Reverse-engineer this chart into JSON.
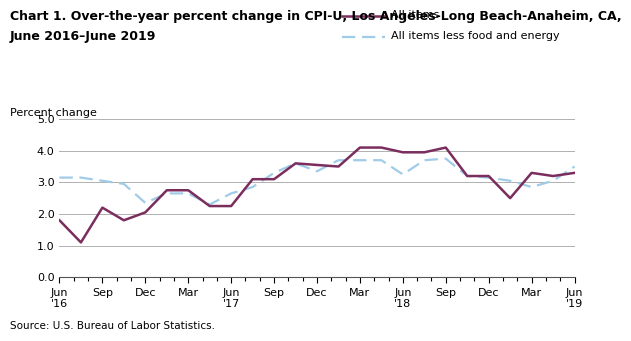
{
  "title_line1": "Chart 1. Over-the-year percent change in CPI-U, Los Angeles-Long Beach-Anaheim, CA,",
  "title_line2": "June 2016–June 2019",
  "ylabel": "Percent change",
  "source": "Source: U.S. Bureau of Labor Statistics.",
  "ylim": [
    0.0,
    5.0
  ],
  "yticks": [
    0.0,
    1.0,
    2.0,
    3.0,
    4.0,
    5.0
  ],
  "all_items": [
    1.8,
    1.1,
    2.2,
    1.8,
    2.05,
    2.75,
    2.75,
    2.25,
    2.25,
    3.1,
    3.1,
    3.6,
    3.55,
    3.5,
    4.1,
    4.1,
    3.95,
    3.95,
    4.1,
    3.2,
    3.2,
    2.5,
    3.3,
    3.2,
    3.3
  ],
  "all_items_less": [
    3.15,
    3.15,
    3.05,
    2.95,
    2.35,
    2.65,
    2.65,
    2.3,
    2.65,
    2.85,
    3.3,
    3.6,
    3.35,
    3.7,
    3.7,
    3.7,
    3.25,
    3.7,
    3.75,
    3.2,
    3.15,
    3.05,
    2.85,
    3.05,
    3.5
  ],
  "all_items_color": "#7b2d5e",
  "all_items_less_color": "#a0cce8",
  "legend_label_all": "All items",
  "legend_label_less": "All items less food and energy",
  "x_major_positions": [
    0,
    3,
    6,
    9,
    12,
    15,
    18,
    21,
    24,
    27,
    30,
    33,
    36
  ],
  "x_major_labels": [
    "Jun\n'16",
    "Sep",
    "Dec",
    "Mar",
    "Jun\n'17",
    "Sep",
    "Dec",
    "Mar",
    "Jun\n'18",
    "Sep",
    "Dec",
    "Mar",
    "Jun\n'19"
  ],
  "background_color": "#ffffff",
  "grid_color": "#b0b0b0",
  "title_fontsize": 9,
  "tick_fontsize": 8,
  "ylabel_fontsize": 8,
  "source_fontsize": 7.5
}
